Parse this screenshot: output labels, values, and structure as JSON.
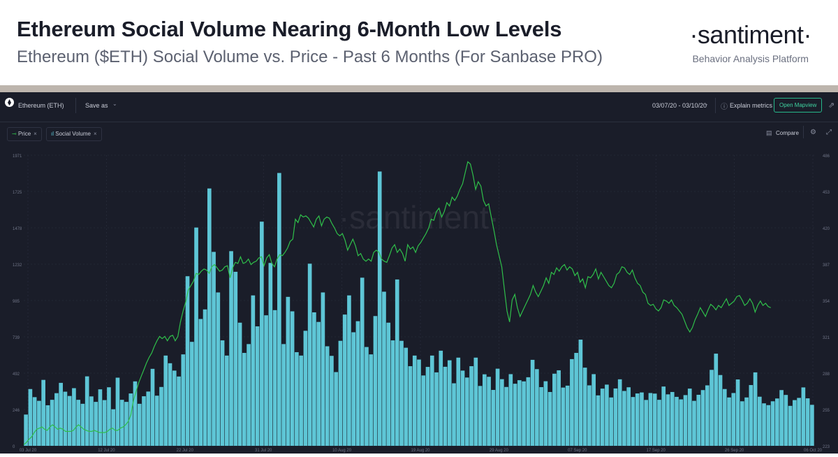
{
  "header": {
    "title": "Ethereum Social Volume Nearing 6-Month Low Levels",
    "subtitle": "Ethereum ($ETH) Social Volume vs. Price - Past 6 Months (For Sanbase PRO)",
    "brand": "·santiment·",
    "brand_tagline": "Behavior Analysis Platform"
  },
  "toolbar": {
    "asset": "Ethereum (ETH)",
    "save_as": "Save as",
    "date_range": "03/07/20 - 03/10/20",
    "explain_metrics": "Explain metrics",
    "open_mapview": "Open Mapview"
  },
  "metrics_bar": {
    "chips": [
      {
        "label": "Price"
      },
      {
        "label": "Social Volume"
      }
    ],
    "compare": "Compare"
  },
  "watermark": "·santiment·",
  "colors": {
    "background": "#1a1d29",
    "bars": "#5ec6d6",
    "price_line": "#2fbf4a",
    "axis_text": "#6f7486",
    "grid": "#2c3040",
    "accent": "#26b78a"
  },
  "chart_data": {
    "type": "bar",
    "series": [
      {
        "name": "Social Volume",
        "type": "bar",
        "axis": "left",
        "values": [
          212,
          385,
          330,
          305,
          447,
          275,
          312,
          357,
          427,
          367,
          338,
          391,
          312,
          285,
          471,
          335,
          298,
          383,
          310,
          397,
          248,
          462,
          312,
          298,
          355,
          437,
          285,
          336,
          368,
          522,
          340,
          399,
          612,
          560,
          510,
          470,
          620,
          1150,
          705,
          1480,
          860,
          925,
          1745,
          1315,
          1040,
          715,
          612,
          1320,
          1180,
          835,
          630,
          690,
          1020,
          810,
          1520,
          885,
          1240,
          920,
          1850,
          690,
          1010,
          912,
          635,
          612,
          780,
          1235,
          905,
          840,
          1040,
          675,
          610,
          500,
          712,
          890,
          1020,
          770,
          845,
          1140,
          670,
          620,
          880,
          1860,
          1045,
          835,
          715,
          1128,
          712,
          665,
          540,
          612,
          585,
          477,
          535,
          612,
          498,
          645,
          536,
          580,
          424,
          598,
          510,
          463,
          540,
          598,
          406,
          485,
          468,
          379,
          523,
          452,
          399,
          486,
          421,
          445,
          437,
          465,
          583,
          520,
          398,
          438,
          365,
          489,
          512,
          395,
          408,
          588,
          630,
          720,
          530,
          410,
          486,
          342,
          388,
          415,
          328,
          389,
          451,
          372,
          397,
          331,
          355,
          362,
          311,
          358,
          354,
          312,
          402,
          349,
          365,
          332,
          315,
          344,
          388,
          305,
          346,
          378,
          410,
          515,
          625,
          480,
          385,
          328,
          358,
          450,
          302,
          328,
          412,
          498,
          333,
          288,
          276,
          302,
          321,
          378,
          345,
          271,
          310,
          325,
          396,
          322,
          278
        ]
      },
      {
        "name": "Price",
        "type": "line",
        "axis": "right",
        "values": [
          224,
          226,
          229,
          231,
          235,
          238,
          239,
          240,
          238,
          237,
          240,
          242,
          240,
          238,
          239,
          238,
          236,
          236,
          236,
          237,
          240,
          242,
          240,
          238,
          237,
          236,
          236,
          237,
          236,
          235,
          235,
          235,
          236,
          238,
          239,
          237,
          237,
          239,
          240,
          242,
          245,
          251,
          264,
          272,
          280,
          286,
          292,
          298,
          303,
          307,
          313,
          318,
          322,
          320,
          322,
          318,
          322,
          323,
          318,
          322,
          335,
          345,
          353,
          364,
          368,
          372,
          379,
          378,
          381,
          383,
          382,
          379,
          385,
          387,
          384,
          381,
          382,
          385,
          386,
          375,
          384,
          389,
          388,
          394,
          388,
          389,
          392,
          387,
          389,
          390,
          393,
          394,
          386,
          393,
          396,
          388,
          385,
          392,
          396,
          395,
          398,
          402,
          408,
          410,
          428,
          425,
          432,
          430,
          431,
          429,
          425,
          421,
          428,
          431,
          422,
          428,
          430,
          429,
          424,
          420,
          415,
          413,
          415,
          409,
          400,
          405,
          410,
          404,
          395,
          397,
          392,
          390,
          392,
          390,
          398,
          400,
          398,
          392,
          390,
          389,
          395,
          402,
          405,
          398,
          401,
          397,
          390,
          405,
          401,
          403,
          398,
          404,
          407,
          411,
          415,
          420,
          428,
          427,
          435,
          438,
          430,
          435,
          443,
          440,
          448,
          445,
          449,
          455,
          460,
          470,
          480,
          478,
          468,
          455,
          462,
          458,
          445,
          440,
          442,
          430,
          418,
          405,
          395,
          385,
          365,
          345,
          335,
          355,
          360,
          348,
          340,
          345,
          350,
          355,
          360,
          368,
          362,
          358,
          363,
          368,
          375,
          370,
          380,
          378,
          384,
          381,
          385,
          387,
          382,
          385,
          383,
          377,
          380,
          371,
          374,
          366,
          376,
          375,
          378,
          383,
          374,
          380,
          376,
          372,
          368,
          366,
          370,
          378,
          380,
          385,
          384,
          380,
          378,
          382,
          375,
          370,
          368,
          362,
          360,
          352,
          350,
          351,
          347,
          345,
          348,
          355,
          354,
          352,
          355,
          350,
          348,
          345,
          342,
          336,
          330,
          326,
          330,
          337,
          342,
          348,
          344,
          340,
          346,
          351,
          349,
          346,
          350,
          348,
          352,
          356,
          350,
          352,
          354,
          358,
          359,
          355,
          350,
          352,
          356,
          352,
          344,
          350,
          354,
          350,
          352,
          349,
          348
        ]
      }
    ],
    "x_tick_labels": [
      "03 Jul 20",
      "12 Jul 20",
      "22 Jul 20",
      "31 Jul 20",
      "10 Aug 20",
      "19 Aug 20",
      "29 Aug 20",
      "07 Sep 20",
      "17 Sep 20",
      "26 Sep 20",
      "06 Oct 20"
    ],
    "y_left_ticks": [
      "1971",
      "1725",
      "1478",
      "1232",
      "985",
      "739",
      "492",
      "246",
      "0"
    ],
    "y_right_ticks": [
      "486",
      "453",
      "420",
      "387",
      "354",
      "321",
      "288",
      "255",
      "223"
    ],
    "y_left_range": [
      0,
      1971
    ],
    "y_right_range": [
      223,
      486
    ],
    "grid": true,
    "legend_position": "top-left"
  }
}
